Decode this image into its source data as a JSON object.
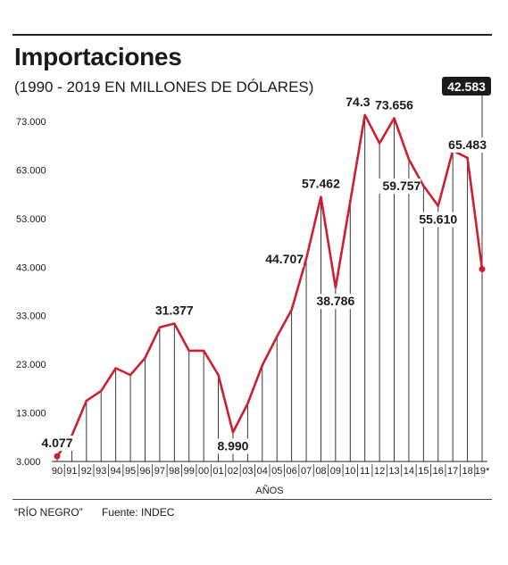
{
  "header": {
    "title": "Importaciones",
    "subtitle": "(1990 - 2019 EN MILLONES DE DÓLARES)"
  },
  "footer": {
    "credit": "“RÍO NEGRO”",
    "source": "Fuente: INDEC"
  },
  "colors": {
    "line": "#cc1f2f",
    "text": "#1a1a1a",
    "highlight_bg": "#1a1a1a",
    "highlight_text": "#ffffff"
  },
  "chart_data": {
    "type": "line",
    "title": "Importaciones",
    "subtitle": "(1990 - 2019 EN MILLONES DE DÓLARES)",
    "xlabel": "AÑOS",
    "ylabel": "",
    "ylim": [
      3000,
      78000
    ],
    "y_ticks": [
      3000,
      13000,
      23000,
      33000,
      43000,
      53000,
      63000,
      73000
    ],
    "y_tick_labels": [
      "3.000",
      "13.000",
      "23.000",
      "33.000",
      "43.000",
      "53.000",
      "63.000",
      "73.000"
    ],
    "categories": [
      "90",
      "91",
      "92",
      "93",
      "94",
      "95",
      "96",
      "97",
      "98",
      "99",
      "00",
      "01",
      "02",
      "03",
      "04",
      "05",
      "06",
      "07",
      "08",
      "09",
      "10",
      "11",
      "12",
      "13",
      "14",
      "15",
      "16",
      "17",
      "18",
      "19*"
    ],
    "series": [
      {
        "values": [
          4077,
          8300,
          15500,
          17500,
          22200,
          20800,
          24300,
          30600,
          31377,
          25800,
          25800,
          20800,
          8990,
          14900,
          22800,
          28700,
          34200,
          44707,
          57462,
          38786,
          56500,
          74319,
          68500,
          73656,
          65200,
          59757,
          55610,
          67000,
          65483,
          42583
        ]
      }
    ],
    "data_labels": [
      {
        "index": 0,
        "text": "4.077",
        "pos": "above"
      },
      {
        "index": 8,
        "text": "31.377",
        "pos": "above"
      },
      {
        "index": 12,
        "text": "8.990",
        "pos": "below"
      },
      {
        "index": 17,
        "text": "44.707",
        "pos": "left"
      },
      {
        "index": 18,
        "text": "57.462",
        "pos": "above"
      },
      {
        "index": 19,
        "text": "38.786",
        "pos": "below"
      },
      {
        "index": 21,
        "text": "74.319",
        "pos": "above"
      },
      {
        "index": 23,
        "text": "73.656",
        "pos": "above"
      },
      {
        "index": 25,
        "text": "59.757",
        "pos": "left"
      },
      {
        "index": 26,
        "text": "55.610",
        "pos": "below"
      },
      {
        "index": 28,
        "text": "65.483",
        "pos": "above"
      }
    ],
    "highlight": {
      "index": 29,
      "text": "42.583"
    },
    "grid": false,
    "vertical_drop_lines": true
  }
}
